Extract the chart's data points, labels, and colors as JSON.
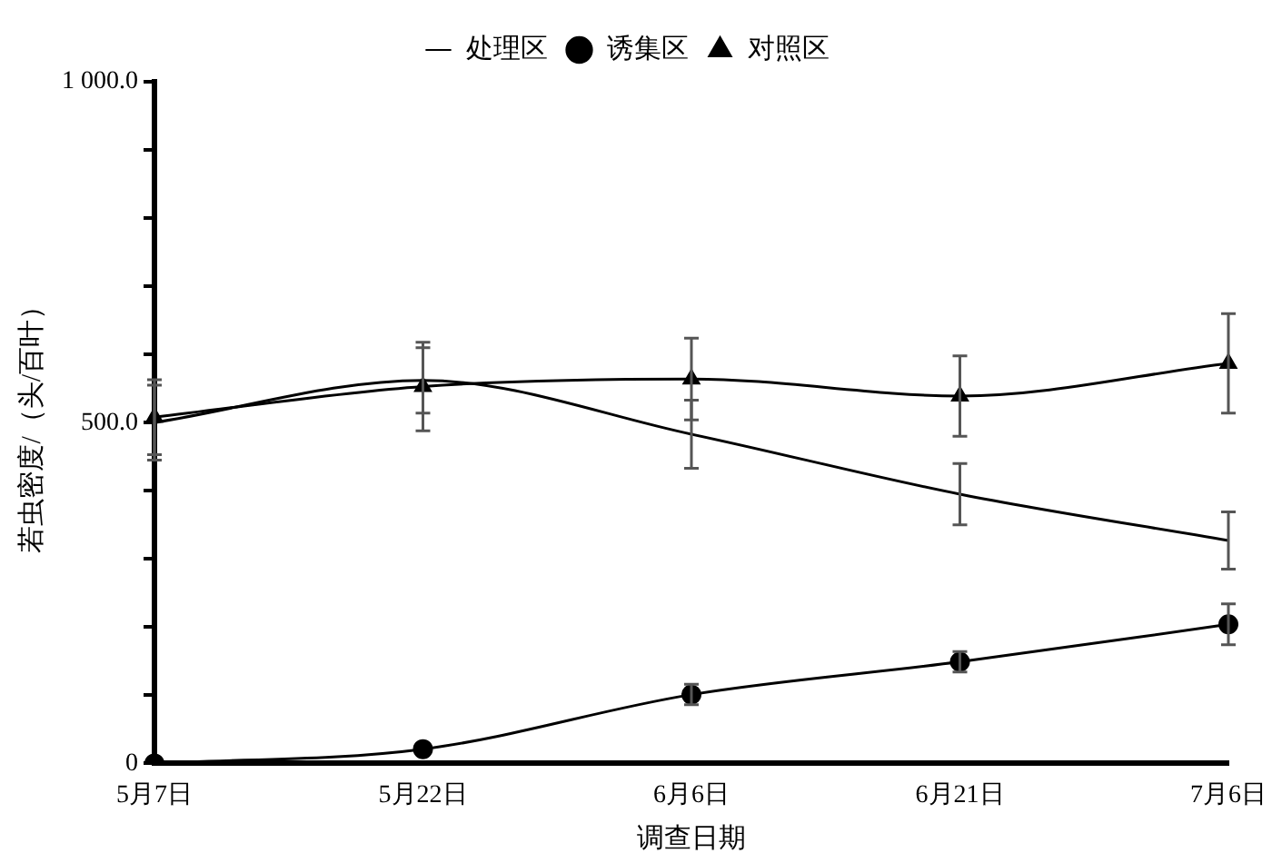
{
  "chart_data": {
    "type": "line",
    "xlabel": "调查日期",
    "ylabel": "若虫密度/（头/百叶）",
    "categories": [
      "5月7日",
      "5月22日",
      "6月6日",
      "6月21日",
      "7月6日"
    ],
    "series": [
      {
        "name": "处理区",
        "color": "#000000",
        "marker": "none",
        "values": [
          500,
          562,
          483,
          395,
          327
        ],
        "errors": [
          55,
          48,
          50,
          45,
          42
        ]
      },
      {
        "name": "诱集区",
        "color": "#000000",
        "marker": "circle",
        "values": [
          0,
          21,
          101,
          149,
          204
        ],
        "errors": [
          null,
          null,
          15,
          15,
          30
        ]
      },
      {
        "name": "对照区",
        "color": "#000000",
        "marker": "triangle",
        "values": [
          508,
          553,
          564,
          539,
          587
        ],
        "errors": [
          55,
          65,
          60,
          59,
          73
        ]
      }
    ],
    "ylim": [
      0,
      1000
    ],
    "yticks": [
      0,
      {
        "value": 100,
        "label": null
      },
      {
        "value": 200,
        "label": null
      },
      {
        "value": 300,
        "label": null
      },
      {
        "value": 400,
        "label": null
      },
      {
        "value": 500,
        "label": "500.0"
      },
      {
        "value": 600,
        "label": null
      },
      {
        "value": 700,
        "label": null
      },
      {
        "value": 800,
        "label": null
      },
      {
        "value": 900,
        "label": null
      },
      {
        "value": 1000,
        "label": "1 000.0"
      }
    ],
    "grid": false,
    "legend": "top"
  }
}
